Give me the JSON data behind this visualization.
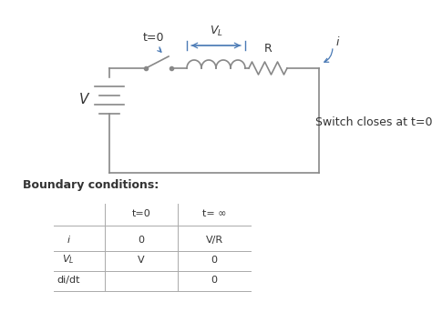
{
  "bg_color": "#ffffff",
  "text_color": "#333333",
  "circuit_color": "#888888",
  "arrow_color": "#4a7ab5",
  "boundary_label": "Boundary conditions:",
  "col_headers": [
    "t=0",
    "t= ∞"
  ],
  "row_labels": [
    "i",
    "V_L",
    "di/dt"
  ],
  "table_data": [
    [
      "0",
      "V/R"
    ],
    [
      "V",
      "0"
    ],
    [
      "",
      "0"
    ]
  ],
  "switch_label": "t=0",
  "r_label": "R",
  "i_label": "i",
  "v_label": "V",
  "switch_note": "Switch closes at t=0",
  "font_size_main": 9,
  "font_size_table": 8,
  "font_size_circuit": 9
}
